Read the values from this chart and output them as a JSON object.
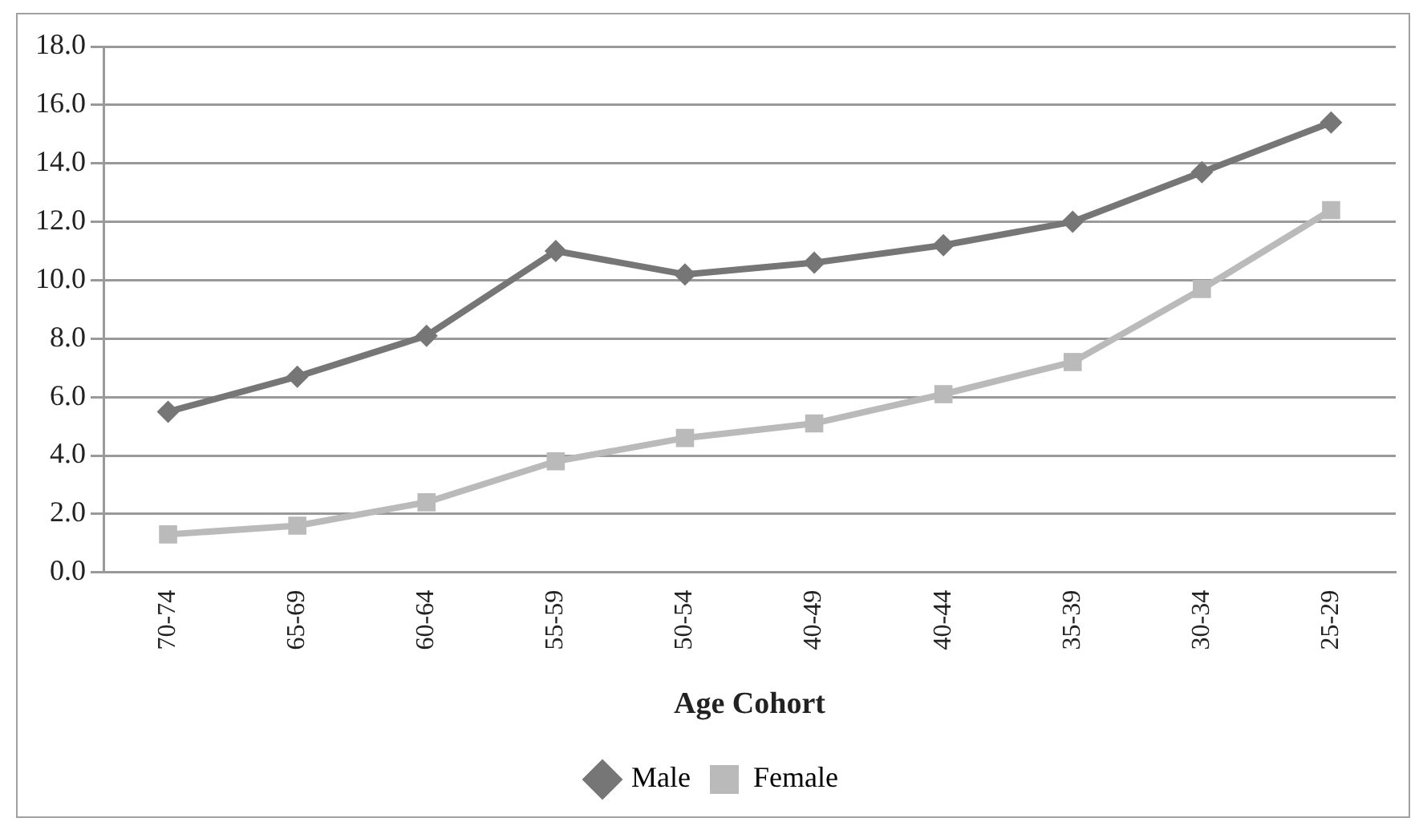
{
  "chart_data": {
    "type": "line",
    "xlabel": "Age Cohort",
    "categories": [
      "70-74",
      "65-69",
      "60-64",
      "55-59",
      "50-54",
      "40-49",
      "40-44",
      "35-39",
      "30-34",
      "25-29"
    ],
    "series": [
      {
        "name": "Male",
        "color": "#767676",
        "marker": "diamond",
        "values": [
          5.5,
          6.7,
          8.1,
          11.0,
          10.2,
          10.6,
          11.2,
          12.0,
          13.7,
          15.4
        ]
      },
      {
        "name": "Female",
        "color": "#bababa",
        "marker": "square",
        "values": [
          1.3,
          1.6,
          2.4,
          3.8,
          4.6,
          5.1,
          6.1,
          7.2,
          9.7,
          12.4
        ]
      }
    ],
    "ylim": [
      0,
      18
    ],
    "yticks": [
      {
        "value": 0,
        "label": "0.0"
      },
      {
        "value": 2,
        "label": "2.0"
      },
      {
        "value": 4,
        "label": "4.0"
      },
      {
        "value": 6,
        "label": "6.0"
      },
      {
        "value": 8,
        "label": "8.0"
      },
      {
        "value": 10,
        "label": "10.0"
      },
      {
        "value": 12,
        "label": "12.0"
      },
      {
        "value": 14,
        "label": "14.0"
      },
      {
        "value": 16,
        "label": "16.0"
      },
      {
        "value": 18,
        "label": "18.0"
      }
    ],
    "grid": "y",
    "legend": "bottom",
    "line_style": "solid"
  }
}
